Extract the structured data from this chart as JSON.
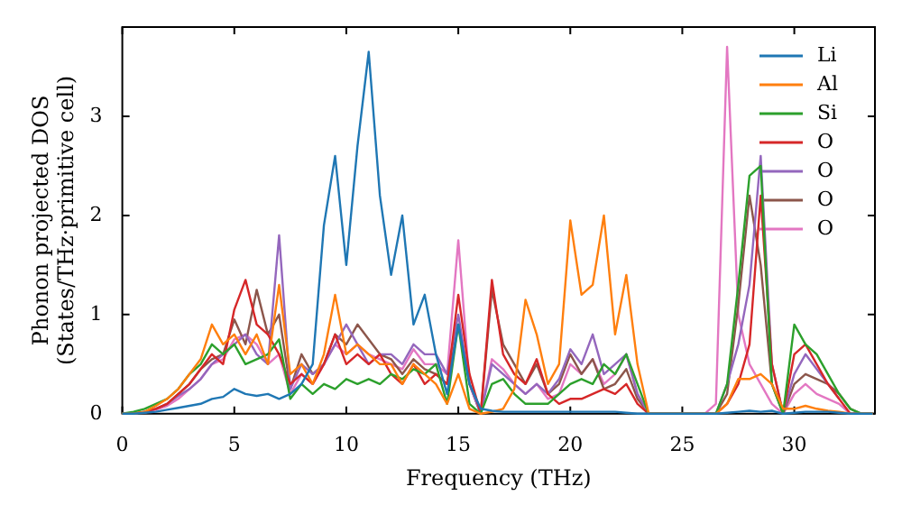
{
  "chart_data": {
    "type": "line",
    "xlabel": "Frequency (THz)",
    "ylabel": "Phonon projected DOS\n(States/THz·primitive cell)",
    "xlim": [
      0,
      33.6
    ],
    "ylim": [
      0,
      3.9
    ],
    "xticks": [
      0,
      5,
      10,
      15,
      20,
      25,
      30
    ],
    "yticks": [
      0,
      1,
      2,
      3
    ],
    "legend": "top right",
    "marker": "none",
    "line_style": "solid",
    "x": [
      0,
      0.5,
      1,
      1.5,
      2,
      2.5,
      3,
      3.5,
      4,
      4.5,
      5,
      5.5,
      6,
      6.5,
      7,
      7.5,
      8,
      8.5,
      9,
      9.5,
      10,
      10.5,
      11,
      11.5,
      12,
      12.5,
      13,
      13.5,
      14,
      14.5,
      15,
      15.5,
      16,
      16.5,
      17,
      17.5,
      18,
      18.5,
      19,
      19.5,
      20,
      20.5,
      21,
      21.5,
      22,
      22.5,
      23,
      23.5,
      24,
      24.5,
      25,
      25.5,
      26,
      26.5,
      27,
      27.5,
      28,
      28.5,
      29,
      29.5,
      30,
      30.5,
      31,
      31.5,
      32,
      32.5,
      33,
      33.5
    ],
    "series": [
      {
        "name": "Li",
        "color": "#1f77b4",
        "values": [
          0,
          0,
          0.01,
          0.02,
          0.04,
          0.06,
          0.08,
          0.1,
          0.15,
          0.17,
          0.25,
          0.2,
          0.18,
          0.2,
          0.15,
          0.2,
          0.3,
          0.5,
          1.9,
          2.6,
          1.5,
          2.7,
          3.65,
          2.2,
          1.4,
          2.0,
          0.9,
          1.2,
          0.6,
          0.2,
          0.9,
          0.3,
          0.05,
          0.03,
          0.02,
          0.02,
          0.02,
          0.02,
          0.02,
          0.02,
          0.02,
          0.02,
          0.02,
          0.02,
          0.02,
          0.01,
          0,
          0,
          0,
          0,
          0,
          0,
          0,
          0,
          0.01,
          0.02,
          0.03,
          0.02,
          0.03,
          0,
          0.01,
          0.02,
          0.02,
          0.02,
          0.01,
          0,
          0,
          0
        ]
      },
      {
        "name": "Al",
        "color": "#ff7f0e",
        "values": [
          0,
          0,
          0.02,
          0.08,
          0.15,
          0.25,
          0.4,
          0.55,
          0.9,
          0.7,
          0.8,
          0.6,
          0.8,
          0.5,
          1.3,
          0.4,
          0.5,
          0.3,
          0.6,
          1.2,
          0.6,
          0.7,
          0.6,
          0.5,
          0.5,
          0.3,
          0.5,
          0.4,
          0.3,
          0.1,
          0.4,
          0.05,
          0,
          0.02,
          0.05,
          0.25,
          1.15,
          0.8,
          0.3,
          0.5,
          1.95,
          1.2,
          1.3,
          2.0,
          0.8,
          1.4,
          0.5,
          0,
          0,
          0,
          0,
          0,
          0,
          0,
          0.1,
          0.35,
          0.35,
          0.4,
          0.3,
          0.05,
          0.05,
          0.08,
          0.05,
          0.03,
          0.02,
          0,
          0,
          0
        ]
      },
      {
        "name": "Si",
        "color": "#2ca02c",
        "values": [
          0,
          0.02,
          0.05,
          0.1,
          0.15,
          0.25,
          0.4,
          0.5,
          0.7,
          0.6,
          0.7,
          0.5,
          0.55,
          0.6,
          0.75,
          0.15,
          0.3,
          0.2,
          0.3,
          0.25,
          0.35,
          0.3,
          0.35,
          0.3,
          0.4,
          0.35,
          0.45,
          0.4,
          0.5,
          0.1,
          0.9,
          0.1,
          0,
          0.3,
          0.35,
          0.2,
          0.1,
          0.1,
          0.1,
          0.2,
          0.3,
          0.35,
          0.3,
          0.5,
          0.4,
          0.6,
          0.3,
          0,
          0,
          0,
          0,
          0,
          0,
          0,
          0.3,
          1.3,
          2.4,
          2.5,
          0.3,
          0,
          0.9,
          0.7,
          0.6,
          0.4,
          0.2,
          0.05,
          0,
          0
        ]
      },
      {
        "name": "O",
        "color": "#d62728",
        "values": [
          0,
          0,
          0.02,
          0.05,
          0.1,
          0.2,
          0.3,
          0.45,
          0.6,
          0.5,
          1.05,
          1.35,
          0.9,
          0.8,
          0.6,
          0.3,
          0.4,
          0.3,
          0.5,
          0.8,
          0.5,
          0.6,
          0.5,
          0.6,
          0.4,
          0.3,
          0.5,
          0.3,
          0.4,
          0.3,
          1.2,
          0.4,
          0,
          1.35,
          0.6,
          0.4,
          0.3,
          0.55,
          0.2,
          0.1,
          0.15,
          0.15,
          0.2,
          0.25,
          0.2,
          0.3,
          0.1,
          0,
          0,
          0,
          0,
          0,
          0,
          0,
          0.1,
          0.3,
          0.7,
          2.2,
          0.5,
          0,
          0.6,
          0.7,
          0.5,
          0.3,
          0.15,
          0,
          0,
          0
        ]
      },
      {
        "name": "O",
        "color": "#9467bd",
        "values": [
          0,
          0,
          0.02,
          0.05,
          0.1,
          0.18,
          0.25,
          0.35,
          0.5,
          0.6,
          0.7,
          0.8,
          0.6,
          0.5,
          1.8,
          0.25,
          0.5,
          0.4,
          0.5,
          0.7,
          0.9,
          0.7,
          0.5,
          0.6,
          0.6,
          0.5,
          0.7,
          0.6,
          0.6,
          0.4,
          1.0,
          0.3,
          0,
          0.5,
          0.4,
          0.3,
          0.2,
          0.3,
          0.2,
          0.35,
          0.65,
          0.5,
          0.8,
          0.4,
          0.5,
          0.6,
          0.2,
          0,
          0,
          0,
          0,
          0,
          0,
          0,
          0.3,
          0.7,
          1.3,
          2.6,
          0.5,
          0,
          0.4,
          0.6,
          0.45,
          0.3,
          0.15,
          null,
          null,
          null
        ]
      },
      {
        "name": "O",
        "color": "#8c564b",
        "values": [
          0,
          0,
          0.02,
          0.05,
          0.1,
          0.2,
          0.3,
          0.45,
          0.55,
          0.6,
          0.95,
          0.7,
          1.25,
          0.8,
          1.0,
          0.25,
          0.6,
          0.4,
          0.5,
          0.8,
          0.7,
          0.9,
          0.75,
          0.6,
          0.55,
          0.4,
          0.55,
          0.45,
          0.4,
          0.3,
          0.9,
          0.3,
          0,
          1.25,
          0.7,
          0.5,
          0.3,
          0.5,
          0.2,
          0.3,
          0.6,
          0.4,
          0.55,
          0.25,
          0.3,
          0.45,
          0.15,
          0,
          0,
          0,
          0,
          0,
          0,
          0,
          0.2,
          1.1,
          2.2,
          1.5,
          0.3,
          0,
          0.3,
          0.4,
          0.35,
          0.3,
          0.2,
          0.05,
          0,
          0
        ]
      },
      {
        "name": "O",
        "color": "#e377c2",
        "values": [
          null,
          null,
          0.01,
          0.04,
          0.08,
          0.15,
          0.25,
          0.35,
          0.5,
          0.55,
          0.75,
          0.8,
          0.7,
          0.5,
          0.6,
          0.2,
          0.4,
          0.3,
          0.5,
          0.7,
          0.6,
          0.7,
          0.6,
          0.55,
          0.5,
          0.45,
          0.65,
          0.5,
          0.5,
          0.4,
          1.75,
          0.3,
          0,
          0.55,
          0.45,
          0.3,
          0.2,
          0.3,
          0.15,
          0.2,
          0.5,
          0.4,
          0.55,
          0.3,
          0.4,
          0.6,
          0.2,
          0,
          0,
          0,
          0,
          0,
          0,
          0.1,
          3.7,
          1.0,
          0.5,
          0.3,
          0.1,
          0,
          0.2,
          0.3,
          0.2,
          0.15,
          0.1,
          0,
          0,
          0
        ]
      }
    ]
  }
}
